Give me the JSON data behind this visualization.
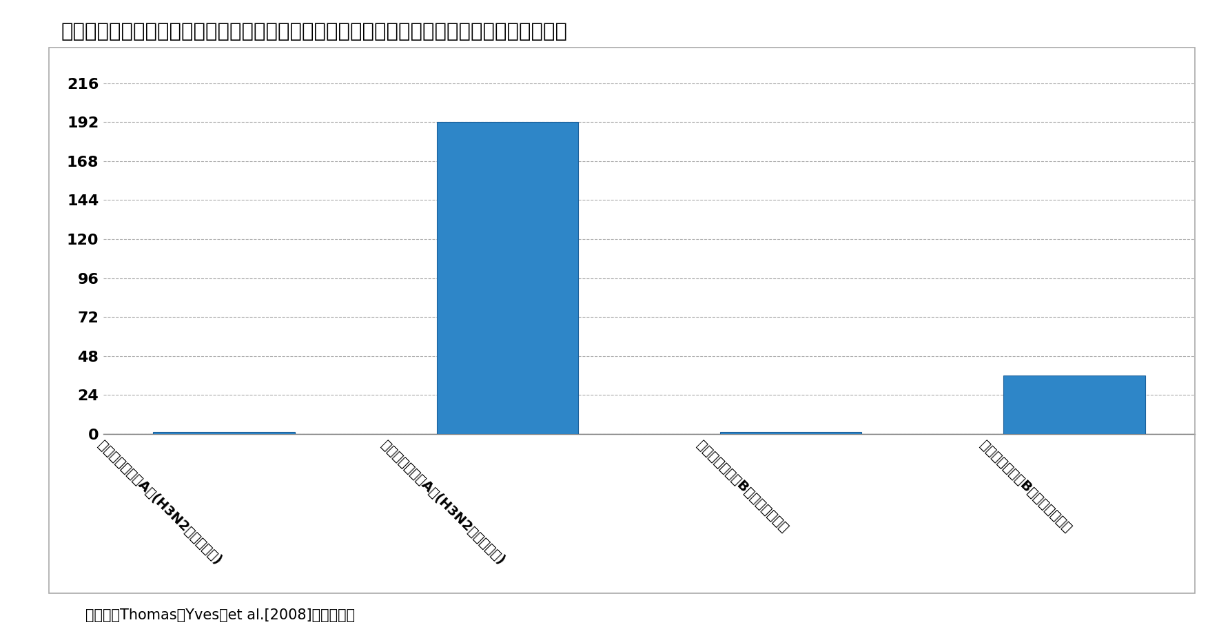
{
  "title": "図表３：ヒトインフルエンザウイルスの紙幣上において生存可能な時間の長さ（単位：時間）",
  "categories": [
    "インフルエンザA型(H3N2：粘液なし)",
    "インフルエンザA型(H3N2：粘液あり)",
    "インフルエンザB型（粘液なし）",
    "インフルエンザB型（粘液あり）"
  ],
  "values": [
    1,
    192,
    1,
    36
  ],
  "bar_color": "#2E86C8",
  "yticks": [
    0,
    24,
    48,
    72,
    96,
    120,
    144,
    168,
    192,
    216
  ],
  "ylim": [
    0,
    228
  ],
  "caption": "（資料：Thomas，Yves，et al.[2008]から作成）",
  "background_color": "#FFFFFF",
  "plot_bg_color": "#FFFFFF",
  "title_fontsize": 21,
  "tick_fontsize": 16,
  "caption_fontsize": 15,
  "xlabel_fontsize": 14
}
